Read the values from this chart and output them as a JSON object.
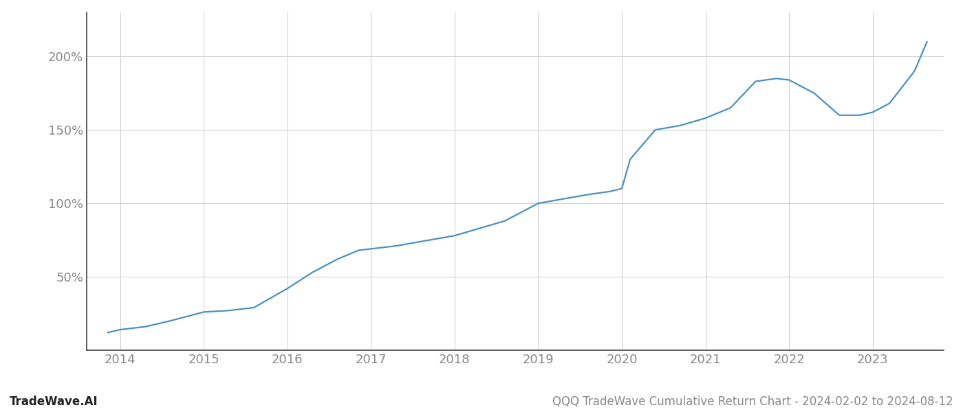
{
  "title": "QQQ TradeWave Cumulative Return Chart - 2024-02-02 to 2024-08-12",
  "watermark": "TradeWave.AI",
  "line_color": "#4a90c4",
  "background_color": "#ffffff",
  "grid_color": "#cccccc",
  "text_color": "#888888",
  "years": [
    2014,
    2015,
    2016,
    2017,
    2018,
    2019,
    2020,
    2021,
    2022,
    2023
  ],
  "x_values": [
    2013.85,
    2014.0,
    2014.3,
    2014.6,
    2015.0,
    2015.3,
    2015.6,
    2016.0,
    2016.3,
    2016.6,
    2016.85,
    2017.0,
    2017.3,
    2017.6,
    2018.0,
    2018.3,
    2018.6,
    2019.0,
    2019.2,
    2019.4,
    2019.6,
    2019.85,
    2020.0,
    2020.1,
    2020.4,
    2020.7,
    2021.0,
    2021.3,
    2021.6,
    2021.85,
    2022.0,
    2022.3,
    2022.6,
    2022.85,
    2023.0,
    2023.2,
    2023.5,
    2023.65
  ],
  "y_values": [
    12,
    14,
    16,
    20,
    26,
    27,
    29,
    42,
    53,
    62,
    68,
    69,
    71,
    74,
    78,
    83,
    88,
    100,
    102,
    104,
    106,
    108,
    110,
    130,
    150,
    153,
    158,
    165,
    183,
    185,
    184,
    175,
    160,
    160,
    162,
    168,
    190,
    210
  ],
  "yticks": [
    50,
    100,
    150,
    200
  ],
  "ylim": [
    0,
    230
  ],
  "xlim": [
    2013.6,
    2023.85
  ],
  "line_width": 1.6,
  "title_fontsize": 12,
  "tick_fontsize": 13,
  "watermark_fontsize": 12
}
